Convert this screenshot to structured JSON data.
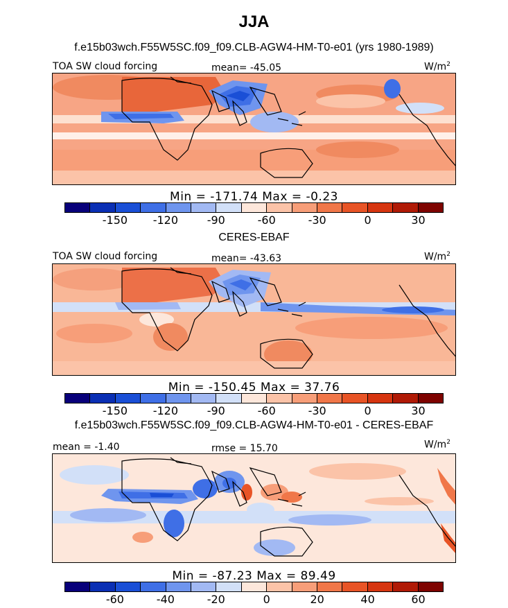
{
  "season": "JJA",
  "panels": [
    {
      "title": "f.e15b03wch.F55W5SC.f09_f09.CLB-AGW4-HM-T0-e01 (yrs 1980-1989)",
      "left_label": "TOA SW cloud forcing",
      "center_label": "mean= -45.05",
      "units": "W/m",
      "units_sup": "2",
      "minmax": "Min = -171.74 Max =  -0.23",
      "colorbar": {
        "colors": [
          "#08007a",
          "#0a2fb4",
          "#1a4fd6",
          "#3f6fe6",
          "#6f95ee",
          "#a2b9f3",
          "#d2e0f8",
          "#fde7db",
          "#fbc3a8",
          "#f79e79",
          "#f07749",
          "#e85426",
          "#d63510",
          "#b01a06",
          "#7e0300"
        ],
        "tick_labels": [
          "-150",
          "-120",
          "-90",
          "-60",
          "-30",
          "0",
          "30"
        ]
      }
    },
    {
      "title": "CERES-EBAF",
      "left_label": "TOA SW cloud forcing",
      "center_label": "mean= -43.63",
      "units": "W/m",
      "units_sup": "2",
      "minmax": "Min = -150.45 Max =  37.76",
      "colorbar": {
        "colors": [
          "#08007a",
          "#0a2fb4",
          "#1a4fd6",
          "#3f6fe6",
          "#6f95ee",
          "#a2b9f3",
          "#d2e0f8",
          "#fde7db",
          "#fbc3a8",
          "#f79e79",
          "#f07749",
          "#e85426",
          "#d63510",
          "#b01a06",
          "#7e0300"
        ],
        "tick_labels": [
          "-150",
          "-120",
          "-90",
          "-60",
          "-30",
          "0",
          "30"
        ]
      }
    },
    {
      "title": "f.e15b03wch.F55W5SC.f09_f09.CLB-AGW4-HM-T0-e01 - CERES-EBAF",
      "left_label": "mean =  -1.40",
      "center_label": "rmse =  15.70",
      "units": "W/m",
      "units_sup": "2",
      "minmax": "Min = -87.23 Max =  89.49",
      "colorbar": {
        "colors": [
          "#08007a",
          "#0a2fb4",
          "#1a4fd6",
          "#3f6fe6",
          "#6f95ee",
          "#a2b9f3",
          "#d2e0f8",
          "#fde7db",
          "#fbc3a8",
          "#f79e79",
          "#f07749",
          "#e85426",
          "#d63510",
          "#b01a06",
          "#7e0300"
        ],
        "tick_labels": [
          "-60",
          "-40",
          "-20",
          "0",
          "20",
          "40",
          "60"
        ]
      }
    }
  ],
  "chart_data": [
    {
      "type": "heatmap",
      "title": "f.e15b03wch.F55W5SC.f09_f09.CLB-AGW4-HM-T0-e01 (yrs 1980-1989)",
      "variable": "TOA SW cloud forcing",
      "season": "JJA",
      "units": "W/m2",
      "mean": -45.05,
      "min": -171.74,
      "max": -0.23,
      "contour_levels": [
        -165,
        -150,
        -135,
        -120,
        -105,
        -90,
        -75,
        -60,
        -45,
        -30,
        -15,
        0,
        15,
        30
      ]
    },
    {
      "type": "heatmap",
      "title": "CERES-EBAF",
      "variable": "TOA SW cloud forcing",
      "season": "JJA",
      "units": "W/m2",
      "mean": -43.63,
      "min": -150.45,
      "max": 37.76,
      "contour_levels": [
        -165,
        -150,
        -135,
        -120,
        -105,
        -90,
        -75,
        -60,
        -45,
        -30,
        -15,
        0,
        15,
        30
      ]
    },
    {
      "type": "heatmap",
      "title": "f.e15b03wch.F55W5SC.f09_f09.CLB-AGW4-HM-T0-e01 - CERES-EBAF",
      "variable": "TOA SW cloud forcing difference",
      "season": "JJA",
      "units": "W/m2",
      "mean": -1.4,
      "rmse": 15.7,
      "min": -87.23,
      "max": 89.49,
      "contour_levels": [
        -70,
        -60,
        -50,
        -40,
        -30,
        -20,
        -10,
        0,
        10,
        20,
        30,
        40,
        50,
        60,
        70
      ]
    }
  ]
}
